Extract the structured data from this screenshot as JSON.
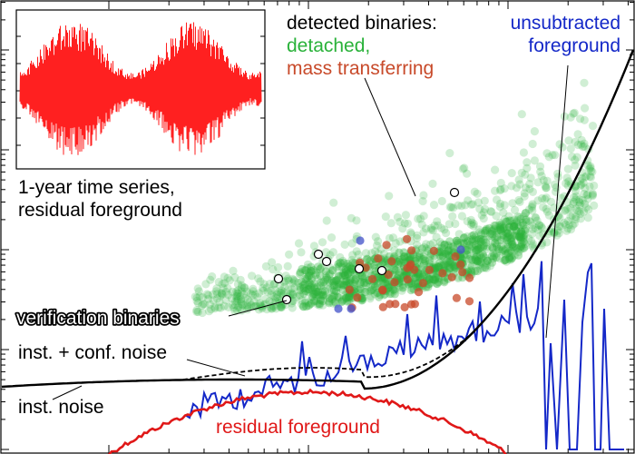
{
  "chart_data": {
    "type": "scatter",
    "title": "",
    "xlabel": "",
    "ylabel": "",
    "axes": {
      "log_x": true,
      "log_y": true,
      "grid": false,
      "tick_labels_shown": false
    },
    "annotations": {
      "inset_caption": [
        "1-year time series,",
        "residual foreground"
      ],
      "detected_header": "detected binaries:",
      "detached": "detached,",
      "mass_transferring": "mass transferring",
      "unsubtracted": [
        "unsubtracted",
        "foreground"
      ],
      "verification": "verification binaries",
      "inst_conf_noise": "inst. + conf. noise",
      "inst_noise": "inst. noise",
      "residual_foreground": "residual foreground"
    },
    "series": [
      {
        "name": "detached",
        "color": "#2ab23a",
        "kind": "scatter"
      },
      {
        "name": "mass transferring",
        "color": "#c84a2a",
        "kind": "scatter"
      },
      {
        "name": "unsubtracted foreground",
        "color": "#1428c8",
        "kind": "line"
      },
      {
        "name": "residual foreground",
        "color": "#e01818",
        "kind": "line"
      },
      {
        "name": "inst. noise",
        "color": "#000000",
        "kind": "line"
      },
      {
        "name": "inst. + conf. noise",
        "color": "#000000",
        "kind": "dashed-line"
      },
      {
        "name": "verification binaries",
        "color": "#ffffff",
        "kind": "open-marker"
      }
    ]
  }
}
